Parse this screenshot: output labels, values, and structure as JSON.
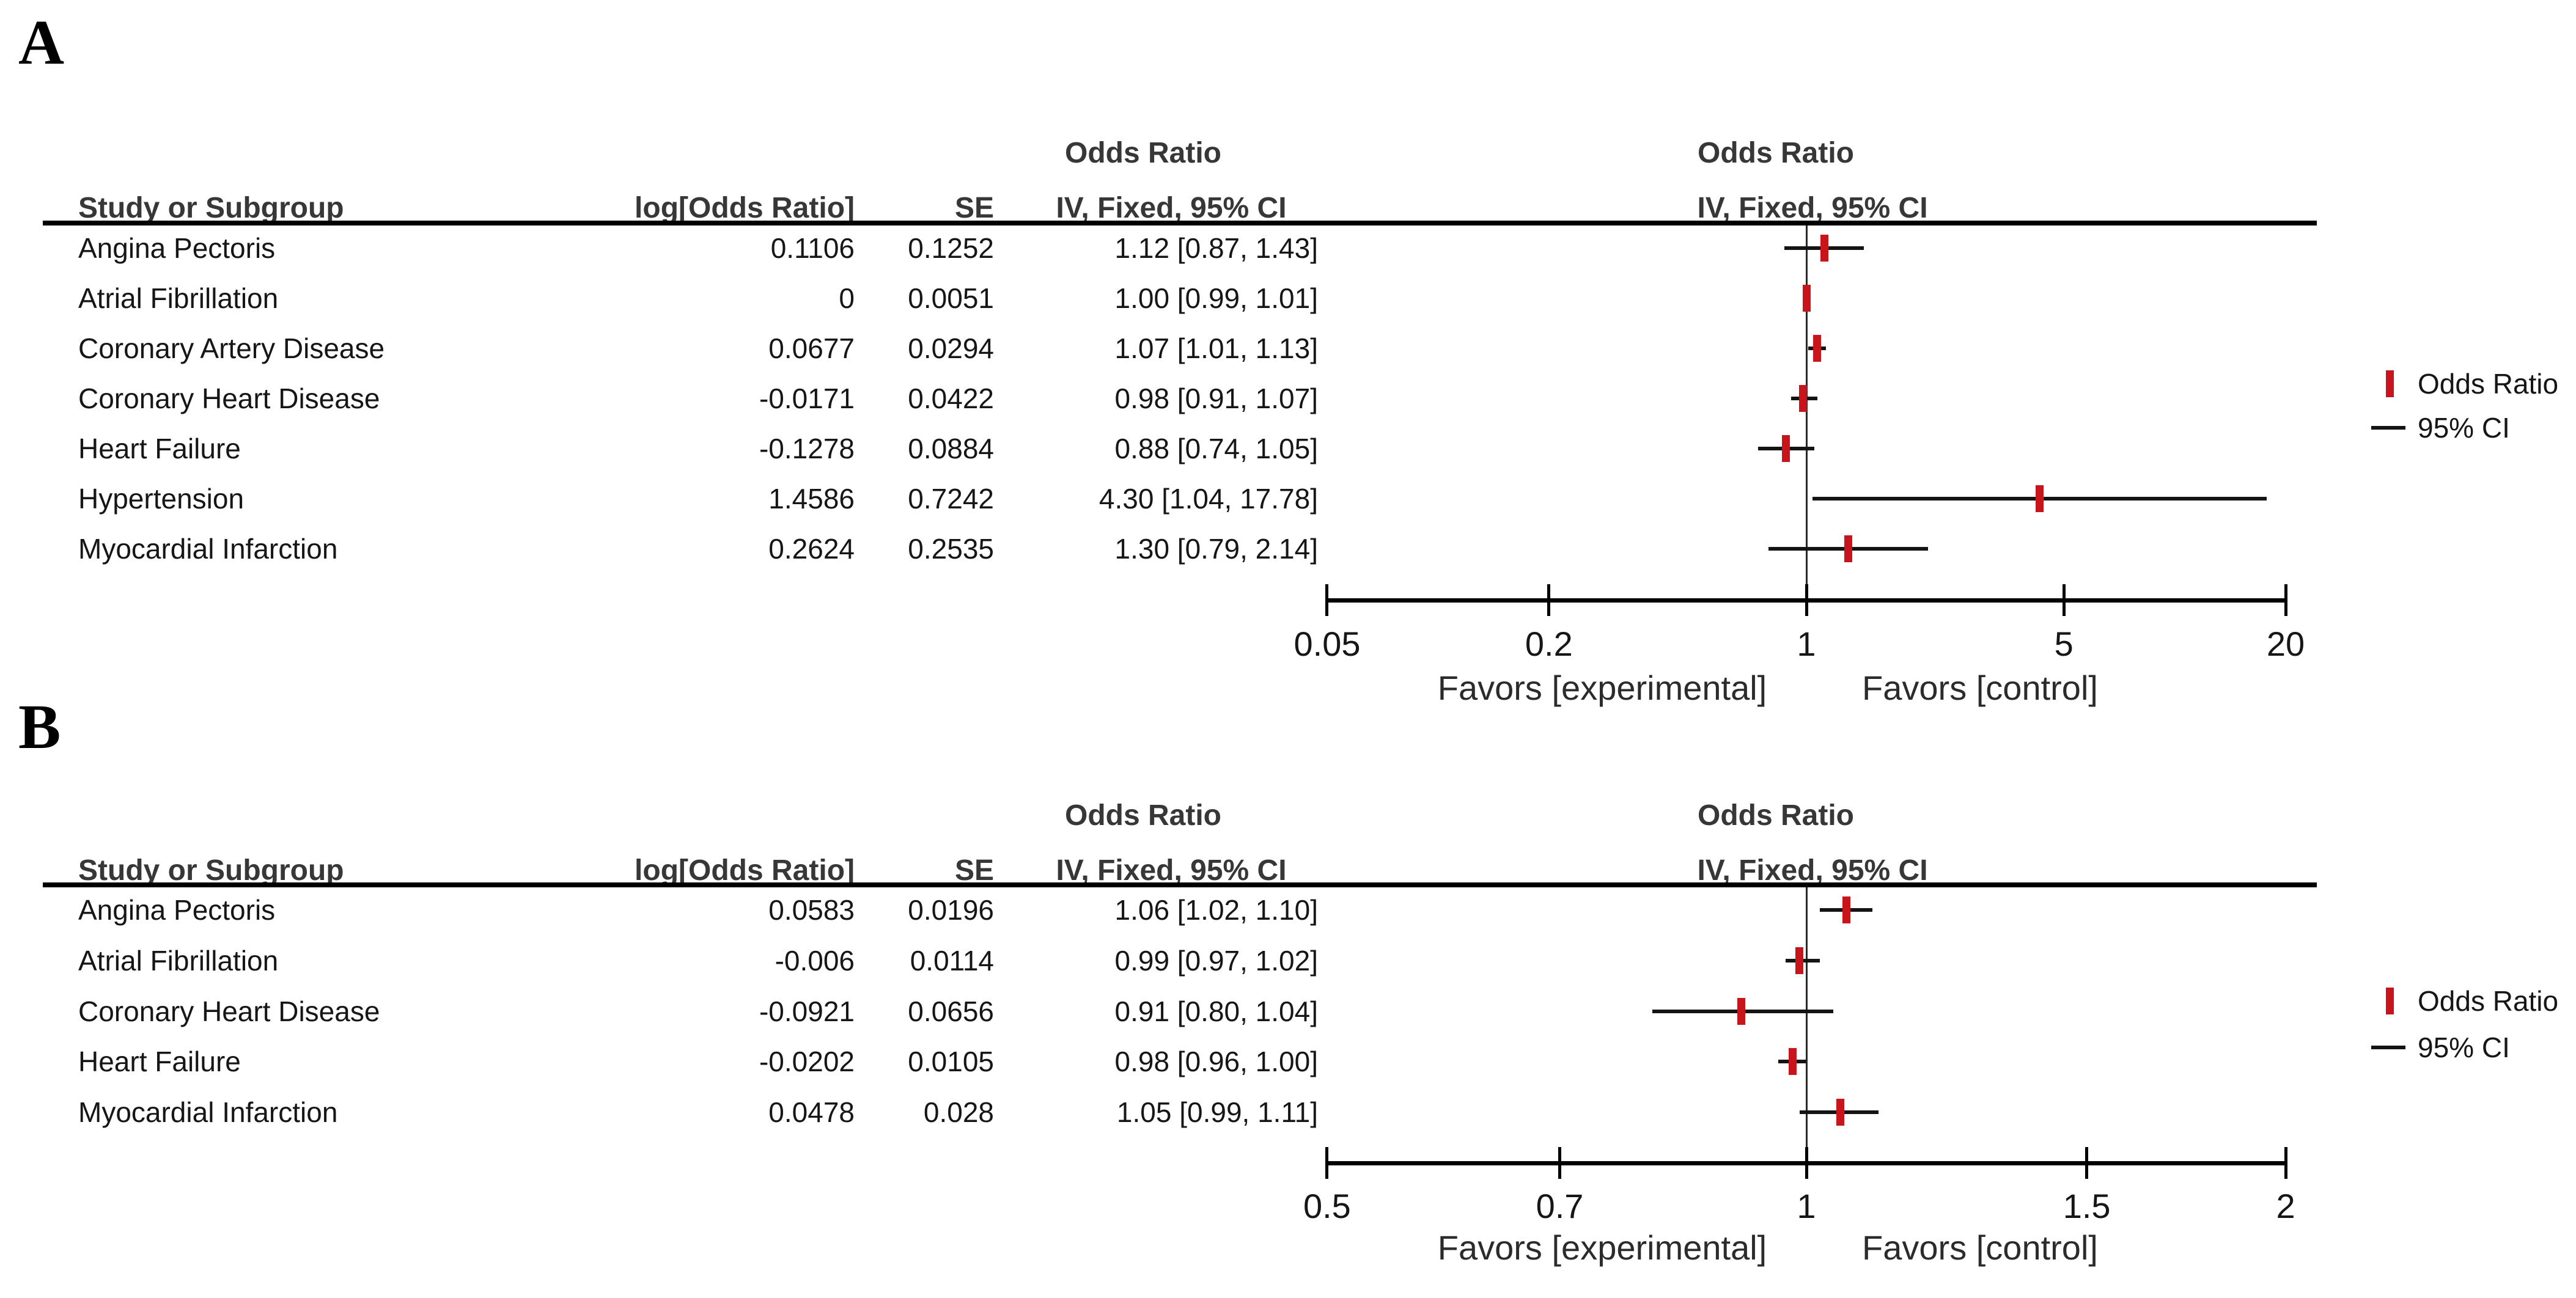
{
  "colors": {
    "marker_red": "#c8151c",
    "ci_line_black": "#141414",
    "header_text": "#373737",
    "body_text": "#161616"
  },
  "panels": [
    {
      "label": "A",
      "table": {
        "study_header": "Study or Subgroup",
        "log_or_header": "log[Odds Ratio]",
        "se_header": "SE",
        "effect_group_header": "Odds Ratio",
        "effect_method_header": "IV, Fixed, 95% CI",
        "rows": [
          {
            "study": "Angina Pectoris",
            "log_or": "0.1106",
            "se": "0.1252",
            "ci_text": "1.12 [0.87, 1.43]"
          },
          {
            "study": "Atrial Fibrillation",
            "log_or": "0",
            "se": "0.0051",
            "ci_text": "1.00 [0.99, 1.01]"
          },
          {
            "study": "Coronary Artery Disease",
            "log_or": "0.0677",
            "se": "0.0294",
            "ci_text": "1.07 [1.01, 1.13]"
          },
          {
            "study": "Coronary Heart Disease",
            "log_or": "-0.0171",
            "se": "0.0422",
            "ci_text": "0.98 [0.91, 1.07]"
          },
          {
            "study": "Heart Failure",
            "log_or": "-0.1278",
            "se": "0.0884",
            "ci_text": "0.88 [0.74, 1.05]"
          },
          {
            "study": "Hypertension",
            "log_or": "1.4586",
            "se": "0.7242",
            "ci_text": "4.30 [1.04, 17.78]"
          },
          {
            "study": "Myocardial Infarction",
            "log_or": "0.2624",
            "se": "0.2535",
            "ci_text": "1.30 [0.79, 2.14]"
          }
        ]
      },
      "plot": {
        "group_header": "Odds Ratio",
        "method_header": "IV, Fixed, 95% CI",
        "tick_labels": [
          "0.05",
          "0.2",
          "1",
          "5",
          "20"
        ],
        "favors_left": "Favors [experimental]",
        "favors_right": "Favors [control]"
      },
      "legend": {
        "marker_label": "Odds Ratio",
        "ci_label": "95% CI"
      }
    },
    {
      "label": "B",
      "table": {
        "study_header": "Study or Subgroup",
        "log_or_header": "log[Odds Ratio]",
        "se_header": "SE",
        "effect_group_header": "Odds Ratio",
        "effect_method_header": "IV, Fixed, 95% CI",
        "rows": [
          {
            "study": "Angina Pectoris",
            "log_or": "0.0583",
            "se": "0.0196",
            "ci_text": "1.06 [1.02, 1.10]"
          },
          {
            "study": "Atrial Fibrillation",
            "log_or": "-0.006",
            "se": "0.0114",
            "ci_text": "0.99 [0.97, 1.02]"
          },
          {
            "study": "Coronary Heart Disease",
            "log_or": "-0.0921",
            "se": "0.0656",
            "ci_text": "0.91 [0.80, 1.04]"
          },
          {
            "study": "Heart Failure",
            "log_or": "-0.0202",
            "se": "0.0105",
            "ci_text": "0.98 [0.96, 1.00]"
          },
          {
            "study": "Myocardial Infarction",
            "log_or": "0.0478",
            "se": "0.028",
            "ci_text": "1.05 [0.99, 1.11]"
          }
        ]
      },
      "plot": {
        "group_header": "Odds Ratio",
        "method_header": "IV, Fixed, 95% CI",
        "tick_labels": [
          "0.5",
          "0.7",
          "1",
          "1.5",
          "2"
        ],
        "favors_left": "Favors [experimental]",
        "favors_right": "Favors [control]"
      },
      "legend": {
        "marker_label": "Odds Ratio",
        "ci_label": "95% CI"
      }
    }
  ],
  "chart_data": [
    {
      "type": "forest",
      "panel": "A",
      "title": "Odds Ratio, IV, Fixed, 95% CI",
      "x_scale": "log",
      "x_ticks": [
        0.05,
        0.2,
        1,
        5,
        20
      ],
      "x_range": [
        0.05,
        20
      ],
      "reference_line": 1,
      "grid": false,
      "legend_position": "right",
      "xlabel_left": "Favors [experimental]",
      "xlabel_right": "Favors [control]",
      "studies": [
        {
          "name": "Angina Pectoris",
          "log_or": 0.1106,
          "se": 0.1252,
          "or": 1.12,
          "ci_low": 0.87,
          "ci_high": 1.43
        },
        {
          "name": "Atrial Fibrillation",
          "log_or": 0,
          "se": 0.0051,
          "or": 1.0,
          "ci_low": 0.99,
          "ci_high": 1.01
        },
        {
          "name": "Coronary Artery Disease",
          "log_or": 0.0677,
          "se": 0.0294,
          "or": 1.07,
          "ci_low": 1.01,
          "ci_high": 1.13
        },
        {
          "name": "Coronary Heart Disease",
          "log_or": -0.0171,
          "se": 0.0422,
          "or": 0.98,
          "ci_low": 0.91,
          "ci_high": 1.07
        },
        {
          "name": "Heart Failure",
          "log_or": -0.1278,
          "se": 0.0884,
          "or": 0.88,
          "ci_low": 0.74,
          "ci_high": 1.05
        },
        {
          "name": "Hypertension",
          "log_or": 1.4586,
          "se": 0.7242,
          "or": 4.3,
          "ci_low": 1.04,
          "ci_high": 17.78
        },
        {
          "name": "Myocardial Infarction",
          "log_or": 0.2624,
          "se": 0.2535,
          "or": 1.3,
          "ci_low": 0.79,
          "ci_high": 2.14
        }
      ]
    },
    {
      "type": "forest",
      "panel": "B",
      "title": "Odds Ratio, IV, Fixed, 95% CI",
      "x_scale": "log",
      "x_ticks": [
        0.5,
        0.7,
        1,
        1.5,
        2
      ],
      "x_range": [
        0.5,
        2
      ],
      "reference_line": 1,
      "grid": false,
      "legend_position": "right",
      "xlabel_left": "Favors [experimental]",
      "xlabel_right": "Favors [control]",
      "studies": [
        {
          "name": "Angina Pectoris",
          "log_or": 0.0583,
          "se": 0.0196,
          "or": 1.06,
          "ci_low": 1.02,
          "ci_high": 1.1
        },
        {
          "name": "Atrial Fibrillation",
          "log_or": -0.006,
          "se": 0.0114,
          "or": 0.99,
          "ci_low": 0.97,
          "ci_high": 1.02
        },
        {
          "name": "Coronary Heart Disease",
          "log_or": -0.0921,
          "se": 0.0656,
          "or": 0.91,
          "ci_low": 0.8,
          "ci_high": 1.04
        },
        {
          "name": "Heart Failure",
          "log_or": -0.0202,
          "se": 0.0105,
          "or": 0.98,
          "ci_low": 0.96,
          "ci_high": 1.0
        },
        {
          "name": "Myocardial Infarction",
          "log_or": 0.0478,
          "se": 0.028,
          "or": 1.05,
          "ci_low": 0.99,
          "ci_high": 1.11
        }
      ]
    }
  ]
}
